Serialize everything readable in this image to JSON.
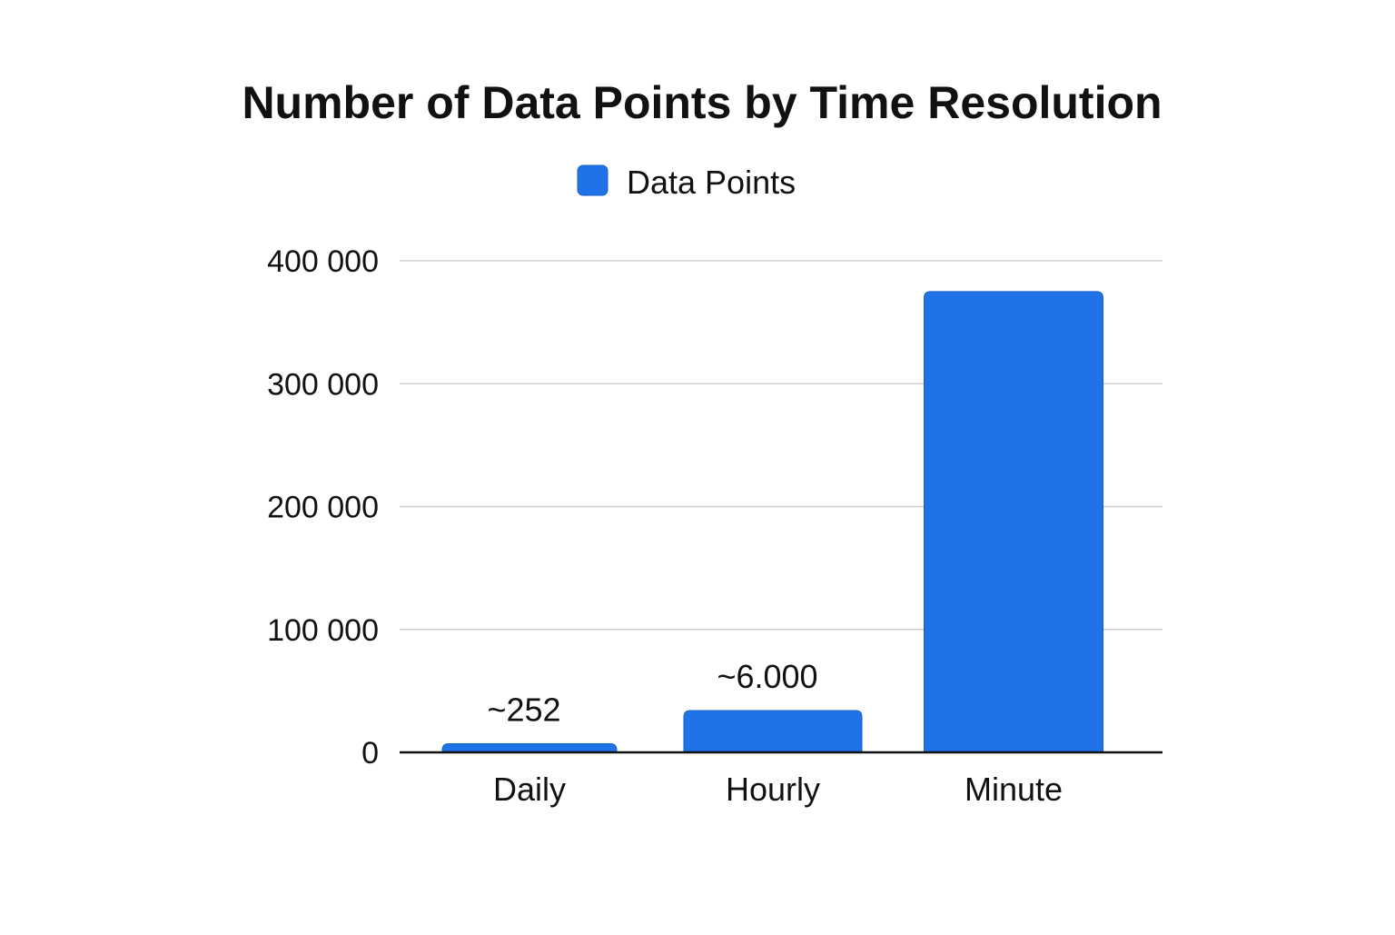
{
  "colors": {
    "bar": "#2072e8",
    "bar_edge": "#1a5fc7",
    "grid": "#d0d0d0",
    "axis": "#111111",
    "text": "#111111"
  },
  "chart_data": {
    "type": "bar",
    "title": "Number of Data Points by Time Resolution",
    "legend_position": "top-center",
    "grid": true,
    "xlabel": "",
    "ylabel": "",
    "ylim": [
      0,
      400000
    ],
    "y_ticks": [
      {
        "value": 0,
        "label": "0"
      },
      {
        "value": 100000,
        "label": "100 000"
      },
      {
        "value": 200000,
        "label": "200 000"
      },
      {
        "value": 300000,
        "label": "300 000"
      },
      {
        "value": 400000,
        "label": "400 000"
      }
    ],
    "categories": [
      "Daily",
      "Hourly",
      "Minute"
    ],
    "series": [
      {
        "name": "Data Points",
        "values": [
          7000,
          34000,
          375000
        ],
        "data_labels": [
          "~252",
          "~6.000",
          ""
        ]
      }
    ]
  }
}
